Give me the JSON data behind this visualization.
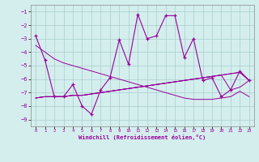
{
  "xlabel": "Windchill (Refroidissement éolien,°C)",
  "x": [
    0,
    1,
    2,
    3,
    4,
    5,
    6,
    7,
    8,
    9,
    10,
    11,
    12,
    13,
    14,
    15,
    16,
    17,
    18,
    19,
    20,
    21,
    22,
    23
  ],
  "y_main": [
    -2.8,
    -4.6,
    -7.3,
    -7.3,
    -6.4,
    -8.0,
    -8.6,
    -6.8,
    -5.9,
    -3.1,
    -4.9,
    -1.2,
    -3.0,
    -2.8,
    -1.3,
    -1.3,
    -4.4,
    -3.0,
    -6.1,
    -5.9,
    -7.3,
    -6.8,
    -5.4,
    -6.1
  ],
  "y_line1": [
    -7.4,
    -7.3,
    -7.3,
    -7.3,
    -7.2,
    -7.2,
    -7.1,
    -7.0,
    -6.9,
    -6.8,
    -6.7,
    -6.6,
    -6.5,
    -6.4,
    -6.3,
    -6.2,
    -6.1,
    -6.0,
    -5.9,
    -5.8,
    -5.7,
    -6.8,
    -6.6,
    -6.1
  ],
  "y_line2": [
    -7.4,
    -7.3,
    -7.3,
    -7.3,
    -7.2,
    -7.2,
    -7.1,
    -7.0,
    -6.9,
    -6.8,
    -6.7,
    -6.6,
    -6.5,
    -6.4,
    -6.3,
    -6.2,
    -6.1,
    -6.0,
    -5.9,
    -5.8,
    -5.7,
    -5.6,
    -5.5,
    -6.1
  ],
  "y_line3": [
    -7.4,
    -7.3,
    -7.3,
    -7.3,
    -7.2,
    -7.2,
    -7.1,
    -7.0,
    -6.9,
    -6.8,
    -6.7,
    -6.6,
    -6.5,
    -6.4,
    -6.3,
    -6.2,
    -6.1,
    -6.0,
    -5.9,
    -5.8,
    -5.7,
    -5.6,
    -5.5,
    -6.1
  ],
  "y_line4": [
    -3.5,
    -4.0,
    -4.5,
    -4.8,
    -5.0,
    -5.2,
    -5.4,
    -5.6,
    -5.8,
    -6.0,
    -6.2,
    -6.4,
    -6.6,
    -6.8,
    -7.0,
    -7.2,
    -7.4,
    -7.5,
    -7.5,
    -7.5,
    -7.4,
    -7.3,
    -6.9,
    -7.3
  ],
  "color_main": "#990099",
  "color_lines": "#990099",
  "bg_color": "#d4eeee",
  "grid_color": "#aacccc",
  "ylim": [
    -9.5,
    -0.5
  ],
  "xlim": [
    -0.5,
    23.5
  ],
  "yticks": [
    -1,
    -2,
    -3,
    -4,
    -5,
    -6,
    -7,
    -8,
    -9
  ],
  "xticks": [
    0,
    1,
    2,
    3,
    4,
    5,
    6,
    7,
    8,
    9,
    10,
    11,
    12,
    13,
    14,
    15,
    16,
    17,
    18,
    19,
    20,
    21,
    22,
    23
  ]
}
